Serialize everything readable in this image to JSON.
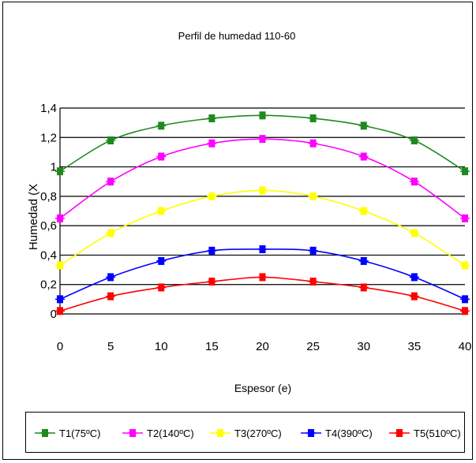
{
  "chart_data": {
    "type": "line",
    "title": "Perfil de humedad 110-60",
    "xlabel": "Espesor (e)",
    "ylabel": "Humedad (X",
    "xlim": [
      0,
      40
    ],
    "ylim": [
      0,
      1.4
    ],
    "x_ticks": [
      "0",
      "5",
      "10",
      "15",
      "20",
      "25",
      "30",
      "35",
      "40"
    ],
    "y_ticks": [
      "0",
      "0,2",
      "0,4",
      "0,6",
      "0,8",
      "1",
      "1,2",
      "1,4"
    ],
    "grid": "horizontal",
    "legend_position": "bottom",
    "x": [
      0,
      5,
      10,
      15,
      20,
      25,
      30,
      35,
      40
    ],
    "series": [
      {
        "name": "T1(75ºC)",
        "color": "#1e8a1e",
        "values": [
          0.97,
          1.18,
          1.28,
          1.33,
          1.35,
          1.33,
          1.28,
          1.18,
          0.97
        ]
      },
      {
        "name": "T2(140ºC)",
        "color": "#ff00ff",
        "values": [
          0.65,
          0.9,
          1.07,
          1.16,
          1.19,
          1.16,
          1.07,
          0.9,
          0.65
        ]
      },
      {
        "name": "T3(270ºC)",
        "color": "#ffff00",
        "values": [
          0.33,
          0.55,
          0.7,
          0.8,
          0.84,
          0.8,
          0.7,
          0.55,
          0.33
        ]
      },
      {
        "name": "T4(390ºC)",
        "color": "#0000ff",
        "values": [
          0.1,
          0.25,
          0.36,
          0.43,
          0.44,
          0.43,
          0.36,
          0.25,
          0.1
        ]
      },
      {
        "name": "T5(510ºC)",
        "color": "#ff0000",
        "values": [
          0.02,
          0.12,
          0.18,
          0.22,
          0.25,
          0.22,
          0.18,
          0.12,
          0.02
        ]
      }
    ]
  }
}
